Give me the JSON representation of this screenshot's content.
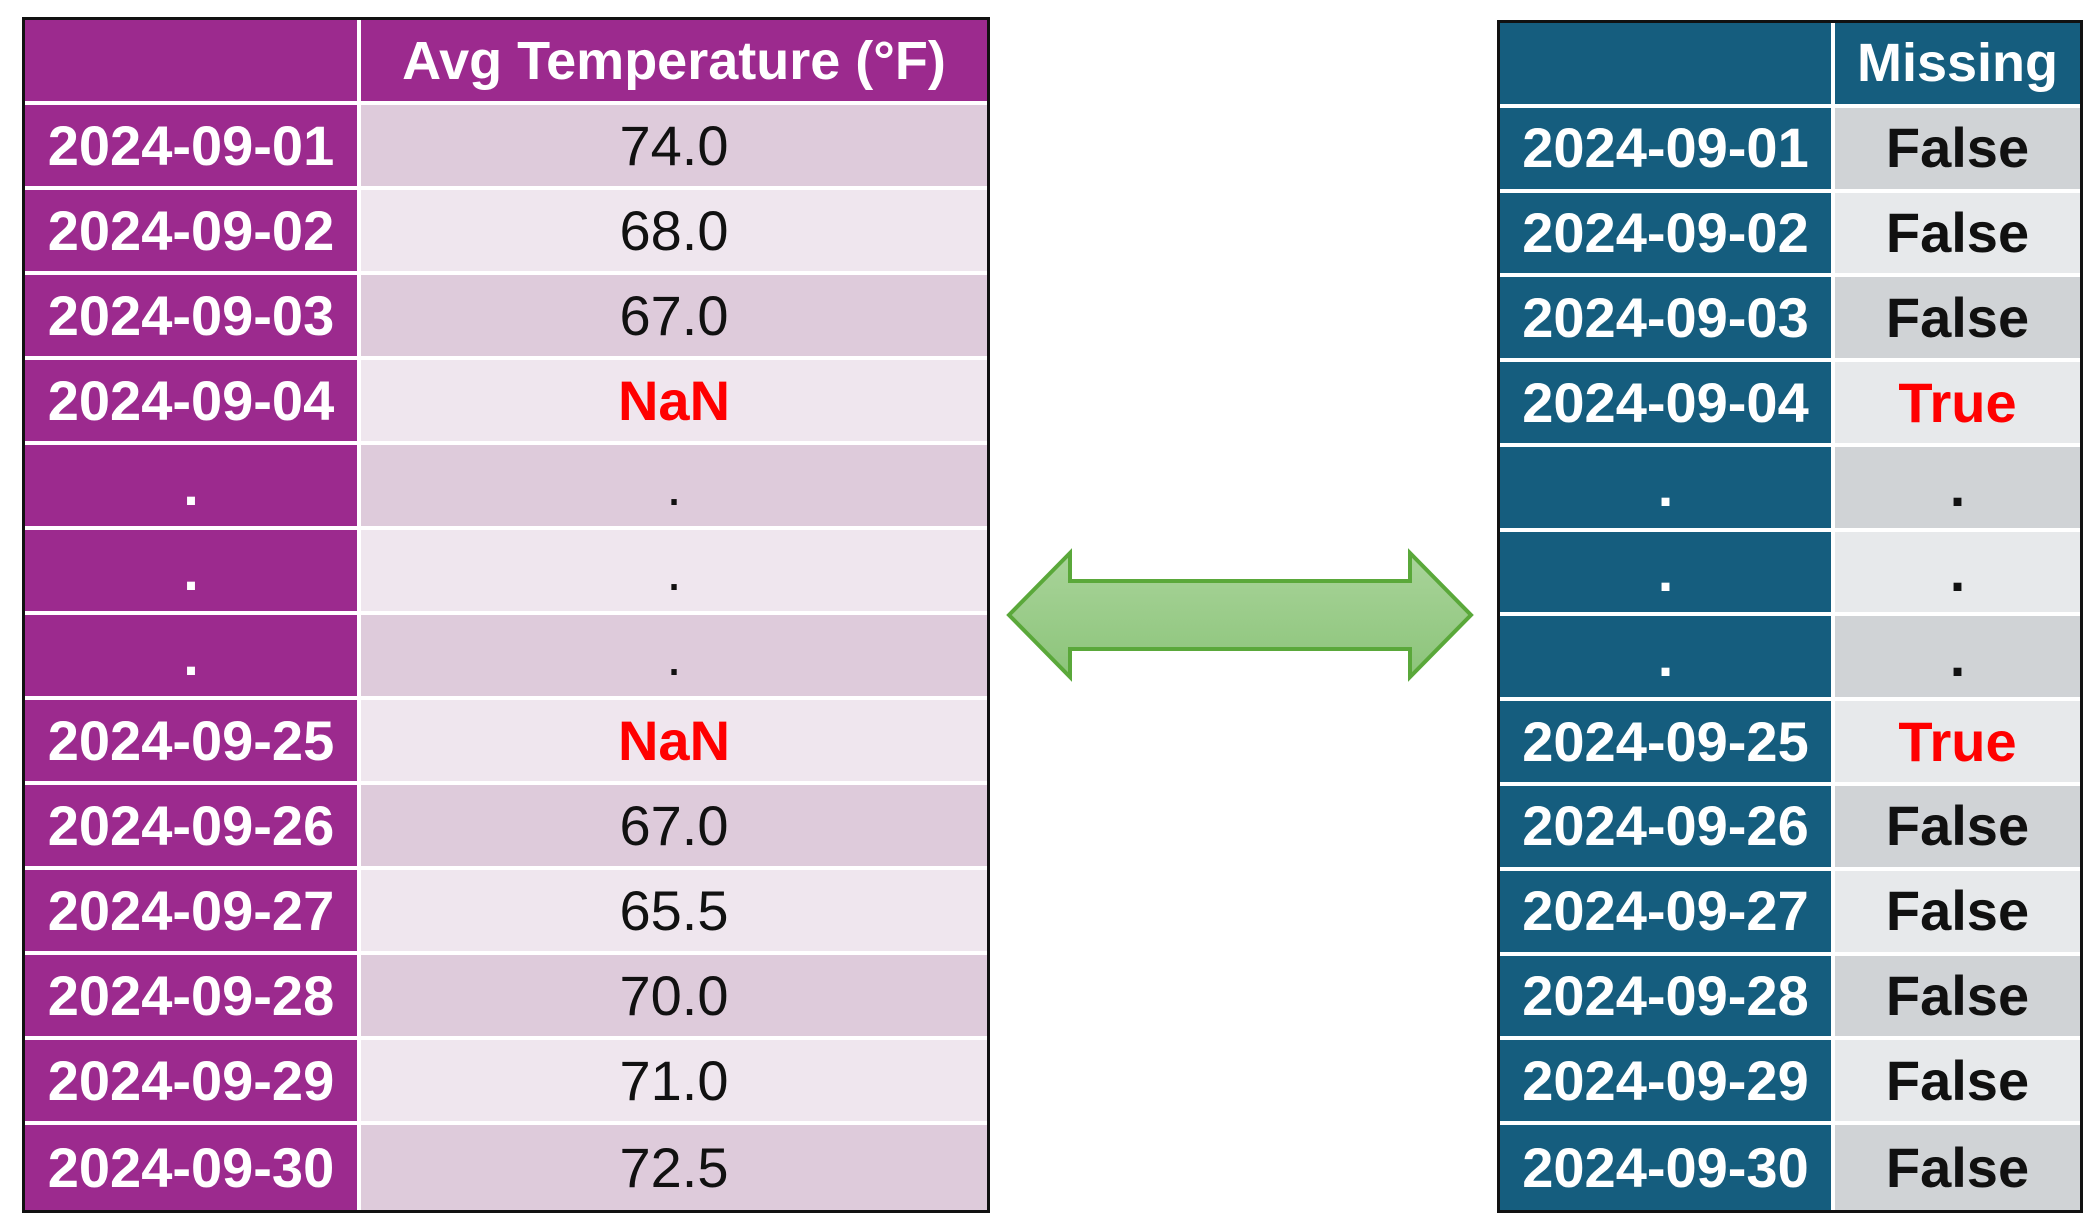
{
  "left_table": {
    "columns": [
      "",
      "Avg Temperature (°F)"
    ],
    "rows": [
      {
        "index": "2024-09-01",
        "value": "74.0"
      },
      {
        "index": "2024-09-02",
        "value": "68.0"
      },
      {
        "index": "2024-09-03",
        "value": "67.0"
      },
      {
        "index": "2024-09-04",
        "value": "NaN",
        "missing": true
      },
      {
        "index": ".",
        "value": "."
      },
      {
        "index": ".",
        "value": "."
      },
      {
        "index": ".",
        "value": "."
      },
      {
        "index": "2024-09-25",
        "value": "NaN",
        "missing": true
      },
      {
        "index": "2024-09-26",
        "value": "67.0"
      },
      {
        "index": "2024-09-27",
        "value": "65.5"
      },
      {
        "index": "2024-09-28",
        "value": "70.0"
      },
      {
        "index": "2024-09-29",
        "value": "71.0"
      },
      {
        "index": "2024-09-30",
        "value": "72.5"
      }
    ]
  },
  "right_table": {
    "columns": [
      "",
      "Missing"
    ],
    "rows": [
      {
        "index": "2024-09-01",
        "value": "False"
      },
      {
        "index": "2024-09-02",
        "value": "False"
      },
      {
        "index": "2024-09-03",
        "value": "False"
      },
      {
        "index": "2024-09-04",
        "value": "True",
        "missing": true
      },
      {
        "index": ".",
        "value": "."
      },
      {
        "index": ".",
        "value": "."
      },
      {
        "index": ".",
        "value": "."
      },
      {
        "index": "2024-09-25",
        "value": "True",
        "missing": true
      },
      {
        "index": "2024-09-26",
        "value": "False"
      },
      {
        "index": "2024-09-27",
        "value": "False"
      },
      {
        "index": "2024-09-28",
        "value": "False"
      },
      {
        "index": "2024-09-29",
        "value": "False"
      },
      {
        "index": "2024-09-30",
        "value": "False"
      }
    ]
  },
  "colors": {
    "left_header": "#9c2a8e",
    "right_header": "#155d7e",
    "missing_text": "#ff0000",
    "arrow_fill": "#9ccc8c",
    "arrow_stroke": "#5aa83a"
  },
  "icons": {
    "connector": "double-headed-arrow-icon"
  }
}
